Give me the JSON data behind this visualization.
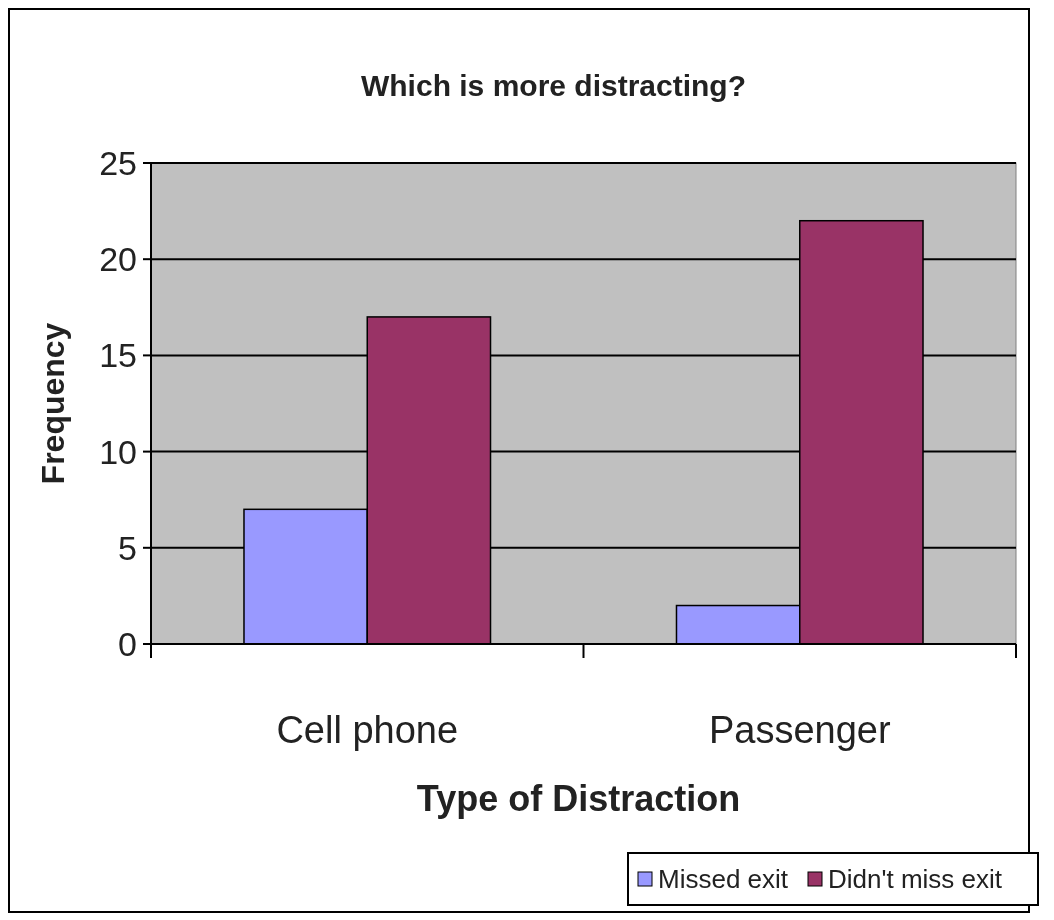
{
  "chart_data": {
    "type": "bar",
    "title": "Which is more distracting?",
    "xlabel": "Type of Distraction",
    "ylabel": "Frequency",
    "categories": [
      "Cell phone",
      "Passenger"
    ],
    "series": [
      {
        "name": "Missed exit",
        "color": "#9999ff",
        "values": [
          7,
          2
        ]
      },
      {
        "name": "Didn't miss exit",
        "color": "#993366",
        "values": [
          17,
          22
        ]
      }
    ],
    "ylim": [
      0,
      25
    ],
    "yticks": [
      0,
      5,
      10,
      15,
      20,
      25
    ],
    "grid": "y",
    "legend": "bottom right"
  }
}
